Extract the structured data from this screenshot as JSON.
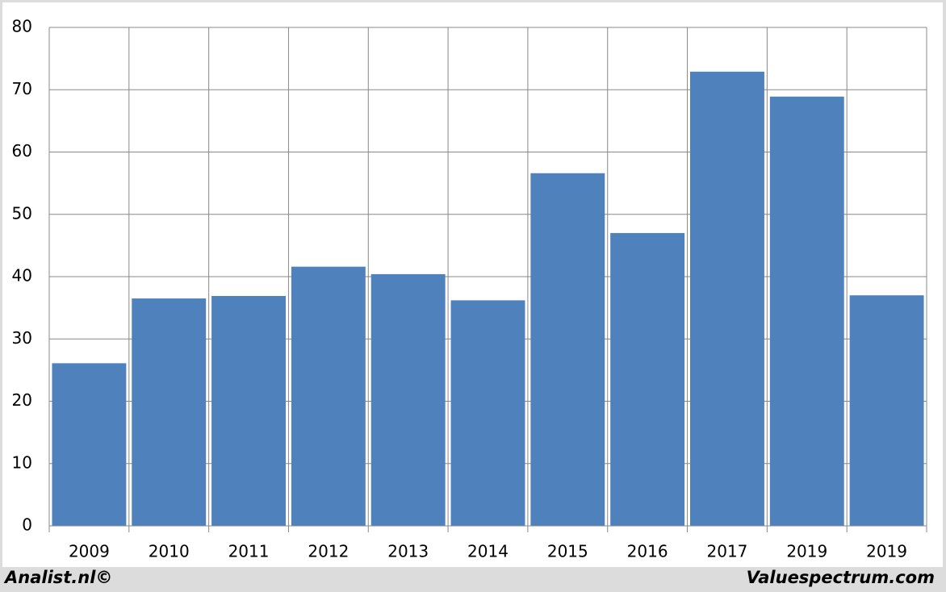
{
  "chart_data": {
    "type": "bar",
    "categories": [
      "2009",
      "2010",
      "2011",
      "2012",
      "2013",
      "2014",
      "2015",
      "2016",
      "2017",
      "2019",
      "2019"
    ],
    "values": [
      26.1,
      36.5,
      36.9,
      41.6,
      40.4,
      36.2,
      56.6,
      47.0,
      72.9,
      68.9,
      37.0
    ],
    "color": "#4f81bd",
    "ylim": [
      0,
      80
    ],
    "yticks": [
      0,
      10,
      20,
      30,
      40,
      50,
      60,
      70,
      80
    ],
    "grid": true
  },
  "footer": {
    "left": "Analist.nl©",
    "right": "Valuespectrum.com"
  }
}
